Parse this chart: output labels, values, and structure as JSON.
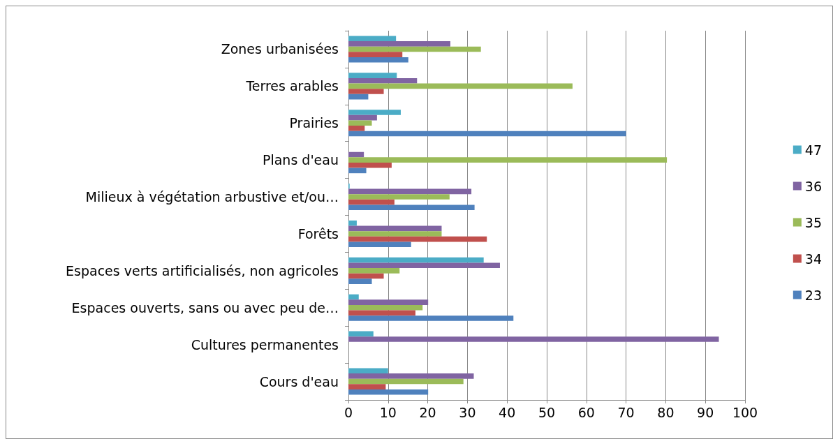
{
  "chart_data": {
    "type": "bar",
    "orientation": "horizontal",
    "categories": [
      "Zones urbanisées",
      "Terres arables",
      "Prairies",
      "Plans d'eau",
      "Milieux à végétation arbustive et/ou…",
      "Forêts",
      "Espaces verts artificialisés, non agricoles",
      "Espaces ouverts, sans ou avec peu de…",
      "Cultures permanentes",
      "Cours d'eau"
    ],
    "series": [
      {
        "name": "47",
        "color": "#4bacc6",
        "values": [
          12.0,
          12.2,
          13.2,
          null,
          0.3,
          2.1,
          34.1,
          2.6,
          6.3,
          10.0
        ]
      },
      {
        "name": "36",
        "color": "#8064a2",
        "values": [
          25.7,
          17.3,
          7.2,
          3.9,
          31.0,
          23.5,
          38.2,
          20.1,
          93.4,
          31.6
        ]
      },
      {
        "name": "35",
        "color": "#9bbb59",
        "values": [
          33.4,
          56.5,
          5.9,
          80.3,
          25.5,
          23.5,
          12.9,
          18.7,
          null,
          29.0
        ]
      },
      {
        "name": "34",
        "color": "#c0504d",
        "values": [
          13.6,
          8.9,
          4.1,
          10.9,
          11.6,
          34.9,
          8.9,
          16.9,
          null,
          9.4
        ]
      },
      {
        "name": "23",
        "color": "#4f81bd",
        "values": [
          15.1,
          5.0,
          70,
          4.5,
          31.8,
          15.8,
          5.9,
          41.6,
          null,
          20.1
        ]
      }
    ],
    "xlim": [
      0,
      100
    ],
    "xticks": [
      0,
      10,
      20,
      30,
      40,
      50,
      60,
      70,
      80,
      90,
      100
    ],
    "grid": "x",
    "legend": "right"
  }
}
